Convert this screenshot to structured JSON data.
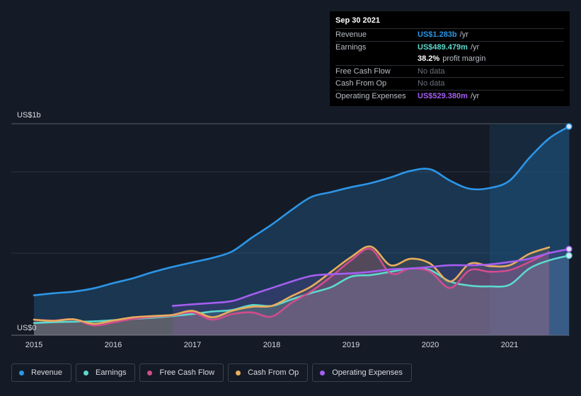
{
  "tooltip": {
    "date": "Sep 30 2021",
    "rows": [
      {
        "label": "Revenue",
        "value": "US$1.283b",
        "unit": "/yr",
        "color": "#2c96e8"
      },
      {
        "label": "Earnings",
        "value": "US$489.479m",
        "unit": "/yr",
        "color": "#5cd9cd"
      },
      {
        "label": "",
        "value": "38.2%",
        "unit": "profit margin",
        "color": "#ffffff"
      },
      {
        "label": "Free Cash Flow",
        "nodata": "No data"
      },
      {
        "label": "Cash From Op",
        "nodata": "No data"
      },
      {
        "label": "Operating Expenses",
        "value": "US$529.380m",
        "unit": "/yr",
        "color": "#a55ef0"
      }
    ]
  },
  "legend": [
    {
      "label": "Revenue",
      "color": "#2c96e8"
    },
    {
      "label": "Earnings",
      "color": "#5cd9cd"
    },
    {
      "label": "Free Cash Flow",
      "color": "#d14c8e"
    },
    {
      "label": "Cash From Op",
      "color": "#e8ad5c"
    },
    {
      "label": "Operating Expenses",
      "color": "#a55ef0"
    }
  ],
  "chart_data": {
    "type": "area",
    "x_unit": "year",
    "y_unit": "US$ millions",
    "ylim": [
      0,
      1300
    ],
    "y_tick_labels": [
      {
        "value": 0,
        "label": "US$0"
      },
      {
        "value": 1300,
        "label": "US$1b"
      }
    ],
    "x_ticks": [
      2015,
      2016,
      2017,
      2018,
      2019,
      2020,
      2021
    ],
    "xlim": [
      2014.7,
      2021.75
    ],
    "series": [
      {
        "name": "Revenue",
        "color": "#2c96e8",
        "x": [
          2015,
          2015.25,
          2015.5,
          2015.75,
          2016,
          2016.25,
          2016.5,
          2016.75,
          2017,
          2017.25,
          2017.5,
          2017.75,
          2018,
          2018.25,
          2018.5,
          2018.75,
          2019,
          2019.25,
          2019.5,
          2019.75,
          2020,
          2020.25,
          2020.5,
          2020.75,
          2021,
          2021.25,
          2021.5,
          2021.75
        ],
        "values": [
          245,
          258,
          268,
          288,
          320,
          350,
          388,
          420,
          448,
          475,
          515,
          600,
          680,
          770,
          850,
          880,
          910,
          935,
          970,
          1010,
          1020,
          950,
          900,
          905,
          950,
          1090,
          1210,
          1283
        ]
      },
      {
        "name": "Earnings",
        "color": "#5cd9cd",
        "x": [
          2015,
          2015.25,
          2015.5,
          2015.75,
          2016,
          2016.25,
          2016.5,
          2016.75,
          2017,
          2017.25,
          2017.5,
          2017.75,
          2018,
          2018.25,
          2018.5,
          2018.75,
          2019,
          2019.25,
          2019.5,
          2019.75,
          2020,
          2020.25,
          2020.5,
          2020.75,
          2021,
          2021.25,
          2021.5,
          2021.75
        ],
        "values": [
          75,
          80,
          83,
          85,
          92,
          100,
          108,
          118,
          130,
          145,
          155,
          185,
          180,
          220,
          260,
          295,
          360,
          370,
          390,
          410,
          400,
          330,
          305,
          300,
          310,
          410,
          460,
          489.479
        ]
      },
      {
        "name": "Free Cash Flow",
        "color": "#d14c8e",
        "x": [
          2015,
          2015.25,
          2015.5,
          2015.75,
          2016,
          2016.25,
          2016.5,
          2016.75,
          2017,
          2017.25,
          2017.5,
          2017.75,
          2018,
          2018.25,
          2018.5,
          2018.75,
          2019,
          2019.25,
          2019.5,
          2019.75,
          2020,
          2020.25,
          2020.5,
          2020.75,
          2021,
          2021.25,
          2021.5
        ],
        "values": [
          95,
          90,
          98,
          60,
          78,
          100,
          113,
          122,
          140,
          95,
          130,
          140,
          115,
          200,
          270,
          360,
          460,
          530,
          380,
          410,
          390,
          290,
          400,
          390,
          400,
          450,
          510
        ]
      },
      {
        "name": "Cash From Op",
        "color": "#e8ad5c",
        "x": [
          2015,
          2015.25,
          2015.5,
          2015.75,
          2016,
          2016.25,
          2016.5,
          2016.75,
          2017,
          2017.25,
          2017.5,
          2017.75,
          2018,
          2018.25,
          2018.5,
          2018.75,
          2019,
          2019.25,
          2019.5,
          2019.75,
          2020,
          2020.25,
          2020.5,
          2020.75,
          2021,
          2021.25,
          2021.5
        ],
        "values": [
          95,
          88,
          98,
          70,
          90,
          110,
          118,
          125,
          150,
          110,
          150,
          175,
          180,
          240,
          300,
          390,
          480,
          545,
          430,
          470,
          440,
          330,
          440,
          425,
          430,
          500,
          540
        ]
      },
      {
        "name": "Operating Expenses",
        "color": "#a55ef0",
        "x": [
          2016.75,
          2017,
          2017.25,
          2017.5,
          2017.75,
          2018,
          2018.25,
          2018.5,
          2018.75,
          2019,
          2019.25,
          2019.5,
          2019.75,
          2020,
          2020.25,
          2020.5,
          2020.75,
          2021,
          2021.25,
          2021.5,
          2021.75
        ],
        "values": [
          180,
          190,
          198,
          210,
          250,
          290,
          330,
          365,
          375,
          380,
          390,
          405,
          410,
          420,
          430,
          430,
          435,
          450,
          470,
          505,
          529.38
        ]
      }
    ],
    "highlight_from": 2020.75
  }
}
